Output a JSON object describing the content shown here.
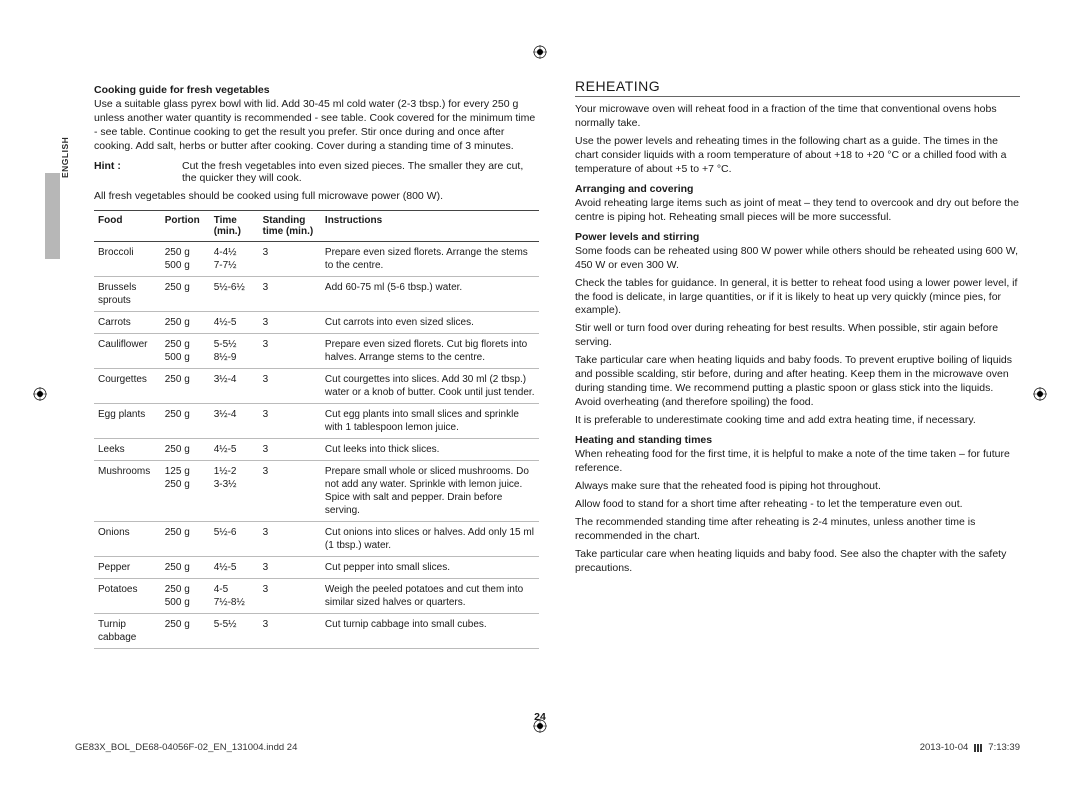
{
  "page": {
    "language_tab": "ENGLISH",
    "page_number": "24",
    "footer_left": "GE83X_BOL_DE68-04056F-02_EN_131004.indd   24",
    "footer_date": "2013-10-04",
    "footer_time": "7:13:39"
  },
  "left": {
    "heading": "Cooking guide for fresh vegetables",
    "intro": "Use a suitable glass pyrex bowl with lid. Add 30-45 ml cold water (2-3 tbsp.) for every 250 g unless another water quantity is recommended - see table. Cook covered for the minimum time - see table. Continue cooking to get the result you prefer. Stir once during and once after cooking. Add salt, herbs or butter after cooking. Cover during a standing time of 3 minutes.",
    "hint_label": "Hint :",
    "hint_text": "Cut the fresh vegetables into even sized pieces. The smaller they are cut, the quicker they will cook.",
    "note": "All fresh vegetables should be cooked using full microwave power (800 W).",
    "table": {
      "columns": [
        "Food",
        "Portion",
        "Time (min.)",
        "Standing time (min.)",
        "Instructions"
      ],
      "col_header_lines": [
        [
          "Food"
        ],
        [
          "Portion"
        ],
        [
          "Time",
          "(min.)"
        ],
        [
          "Standing",
          "time (min.)"
        ],
        [
          "Instructions"
        ]
      ],
      "rows": [
        {
          "food": "Broccoli",
          "portion": "250 g\n500 g",
          "time": "4-4½\n7-7½",
          "stand": "3",
          "instr": "Prepare even sized florets. Arrange the stems to the centre."
        },
        {
          "food": "Brussels sprouts",
          "portion": "250 g",
          "time": "5½-6½",
          "stand": "3",
          "instr": "Add 60-75 ml (5-6 tbsp.) water."
        },
        {
          "food": "Carrots",
          "portion": "250 g",
          "time": "4½-5",
          "stand": "3",
          "instr": "Cut carrots into even sized slices."
        },
        {
          "food": "Cauliflower",
          "portion": "250 g\n500 g",
          "time": "5-5½\n8½-9",
          "stand": "3",
          "instr": "Prepare even sized florets. Cut big florets into halves. Arrange stems to the centre."
        },
        {
          "food": "Courgettes",
          "portion": "250 g",
          "time": "3½-4",
          "stand": "3",
          "instr": "Cut courgettes into slices. Add 30 ml (2 tbsp.) water or a knob of butter. Cook until just tender."
        },
        {
          "food": "Egg plants",
          "portion": "250 g",
          "time": "3½-4",
          "stand": "3",
          "instr": "Cut egg plants into small slices and sprinkle with 1 tablespoon lemon juice."
        },
        {
          "food": "Leeks",
          "portion": "250 g",
          "time": "4½-5",
          "stand": "3",
          "instr": "Cut leeks into thick slices."
        },
        {
          "food": "Mushrooms",
          "portion": "125 g\n250 g",
          "time": "1½-2\n3-3½",
          "stand": "3",
          "instr": "Prepare small whole or sliced mushrooms. Do not add any water. Sprinkle with lemon juice. Spice with salt and pepper. Drain before serving."
        },
        {
          "food": "Onions",
          "portion": "250 g",
          "time": "5½-6",
          "stand": "3",
          "instr": "Cut onions into slices or halves. Add only 15 ml (1 tbsp.) water."
        },
        {
          "food": "Pepper",
          "portion": "250 g",
          "time": "4½-5",
          "stand": "3",
          "instr": "Cut pepper into small slices."
        },
        {
          "food": "Potatoes",
          "portion": "250 g\n500 g",
          "time": "4-5\n7½-8½",
          "stand": "3",
          "instr": "Weigh the peeled potatoes and cut them into similar sized halves or quarters."
        },
        {
          "food": "Turnip cabbage",
          "portion": "250 g",
          "time": "5-5½",
          "stand": "3",
          "instr": "Cut turnip cabbage into small cubes."
        }
      ]
    }
  },
  "right": {
    "heading": "REHEATING",
    "para1": "Your microwave oven will reheat food in a fraction of the time that conventional ovens hobs normally take.",
    "para2": "Use the power levels and reheating times in the following chart as a guide. The times in the chart consider liquids with a room temperature of about +18 to +20 °C or a chilled food with a temperature of about +5 to +7 °C.",
    "s1_h": "Arranging and covering",
    "s1_p": "Avoid reheating large items such as joint of meat – they tend to overcook and dry out before the centre is piping hot. Reheating small pieces will be more successful.",
    "s2_h": "Power levels and stirring",
    "s2_p1": "Some foods can be reheated using 800 W power while others should be reheated using 600 W, 450 W or even 300 W.",
    "s2_p2": "Check the tables for guidance. In general, it is better to reheat food using a lower power level, if the food is delicate, in large quantities, or if it is likely to heat up very quickly (mince pies, for example).",
    "s2_p3": "Stir well or turn food over during reheating for best results. When possible, stir again before serving.",
    "s2_p4": "Take particular care when heating liquids and baby foods. To prevent eruptive boiling of liquids and possible scalding, stir before, during and after heating. Keep them in the microwave oven during standing time. We recommend putting a plastic spoon or glass stick into the liquids. Avoid overheating (and therefore spoiling) the food.",
    "s2_p5": "It is preferable to underestimate cooking time and add extra heating time, if necessary.",
    "s3_h": "Heating and standing times",
    "s3_p1": "When reheating food for the first time, it is helpful to make a note of the time taken – for future reference.",
    "s3_p2": "Always make sure that the reheated food is piping hot throughout.",
    "s3_p3": "Allow food to stand for a short time after reheating - to let the temperature even out.",
    "s3_p4": "The recommended standing time after reheating is 2-4 minutes, unless another time is recommended in the chart.",
    "s3_p5": "Take particular care when heating liquids and baby food. See also the chapter with the safety precautions."
  }
}
